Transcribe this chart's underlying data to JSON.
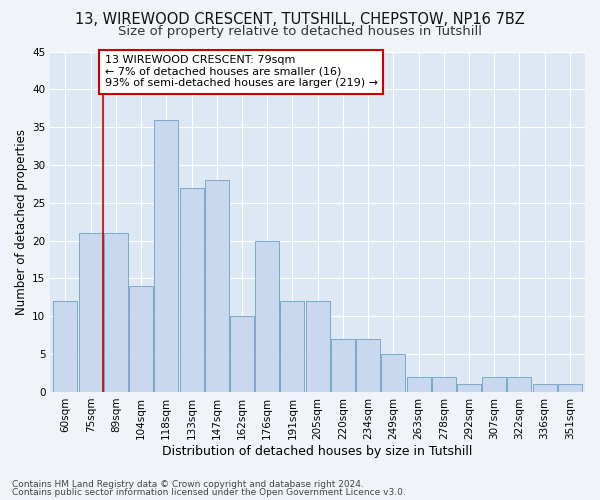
{
  "title1": "13, WIREWOOD CRESCENT, TUTSHILL, CHEPSTOW, NP16 7BZ",
  "title2": "Size of property relative to detached houses in Tutshill",
  "xlabel": "Distribution of detached houses by size in Tutshill",
  "ylabel": "Number of detached properties",
  "categories": [
    "60sqm",
    "75sqm",
    "89sqm",
    "104sqm",
    "118sqm",
    "133sqm",
    "147sqm",
    "162sqm",
    "176sqm",
    "191sqm",
    "205sqm",
    "220sqm",
    "234sqm",
    "249sqm",
    "263sqm",
    "278sqm",
    "292sqm",
    "307sqm",
    "322sqm",
    "336sqm",
    "351sqm"
  ],
  "values": [
    12,
    21,
    21,
    14,
    36,
    27,
    28,
    10,
    20,
    12,
    12,
    7,
    7,
    5,
    2,
    2,
    1,
    2,
    2,
    1,
    1
  ],
  "bar_color": "#c8d8ee",
  "bar_edge_color": "#7aaac8",
  "background_color": "#f0f4f8",
  "plot_bg_color": "#dde8f4",
  "grid_color": "#ffffff",
  "red_line_x": 1.5,
  "annotation_title": "13 WIREWOOD CRESCENT: 79sqm",
  "annotation_line1": "← 7% of detached houses are smaller (16)",
  "annotation_line2": "93% of semi-detached houses are larger (219) →",
  "annotation_box_color": "#ffffff",
  "annotation_border_color": "#cc0000",
  "red_line_color": "#cc0000",
  "ylim": [
    0,
    45
  ],
  "yticks": [
    0,
    5,
    10,
    15,
    20,
    25,
    30,
    35,
    40,
    45
  ],
  "footer1": "Contains HM Land Registry data © Crown copyright and database right 2024.",
  "footer2": "Contains public sector information licensed under the Open Government Licence v3.0.",
  "title1_fontsize": 10.5,
  "title2_fontsize": 9.5,
  "tick_fontsize": 7.5,
  "ylabel_fontsize": 8.5,
  "xlabel_fontsize": 9
}
